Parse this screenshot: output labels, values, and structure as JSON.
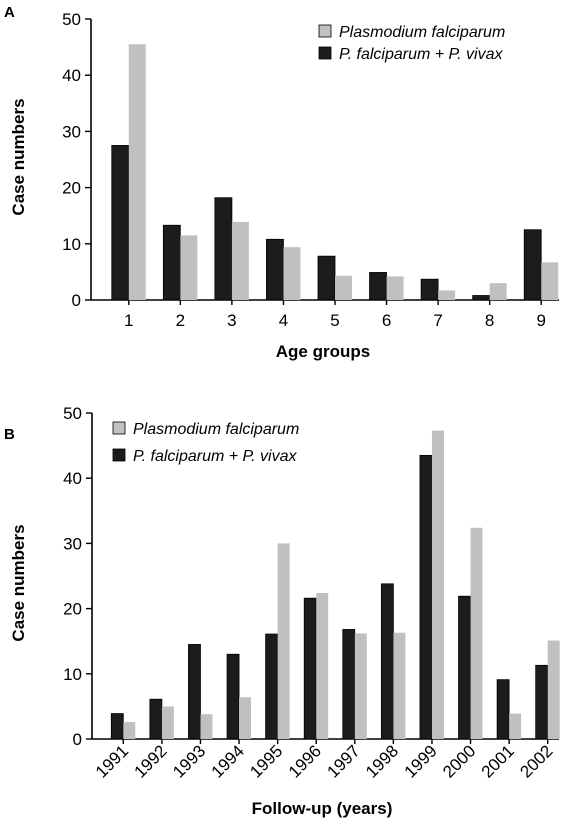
{
  "colors": {
    "falciparum": "#c0c0c0",
    "mixed": "#1c1c1c",
    "stroke": "#000000"
  },
  "chart_data": [
    {
      "panel": "A",
      "type": "bar",
      "xlabel": "Age groups",
      "ylabel": "Case numbers",
      "ylim": [
        0,
        50
      ],
      "yticks": [
        0,
        10,
        20,
        30,
        40,
        50
      ],
      "categories": [
        "1",
        "2",
        "3",
        "4",
        "5",
        "6",
        "7",
        "8",
        "9"
      ],
      "series": [
        {
          "key": "mixed",
          "name": "P. falciparum + P. vivax",
          "values": [
            27.5,
            13.3,
            18.2,
            10.8,
            7.8,
            4.9,
            3.7,
            0.8,
            12.5
          ]
        },
        {
          "key": "falciparum",
          "name": "Plasmodium falciparum",
          "values": [
            45.5,
            11.5,
            13.9,
            9.4,
            4.3,
            4.2,
            1.7,
            3.0,
            6.7
          ]
        }
      ],
      "legend": [
        {
          "key": "falciparum",
          "name": "Plasmodium falciparum"
        },
        {
          "key": "mixed",
          "name": "P. falciparum + P. vivax"
        }
      ],
      "legend_position": "top-right",
      "grid": false
    },
    {
      "panel": "B",
      "type": "bar",
      "xlabel": "Follow-up (years)",
      "ylabel": "Case numbers",
      "ylim": [
        0,
        50
      ],
      "yticks": [
        0,
        10,
        20,
        30,
        40,
        50
      ],
      "categories": [
        "1991",
        "1992",
        "1993",
        "1994",
        "1995",
        "1996",
        "1997",
        "1998",
        "1999",
        "2000",
        "2001",
        "2002"
      ],
      "series": [
        {
          "key": "mixed",
          "name": "P. falciparum + P. vivax",
          "values": [
            3.9,
            6.1,
            14.5,
            13.0,
            16.1,
            21.6,
            16.8,
            23.8,
            43.5,
            21.9,
            9.1,
            11.3
          ]
        },
        {
          "key": "falciparum",
          "name": "Plasmodium falciparum",
          "values": [
            2.6,
            5.0,
            3.8,
            6.4,
            30.0,
            22.4,
            16.2,
            16.3,
            47.3,
            32.4,
            3.9,
            15.1
          ]
        }
      ],
      "legend": [
        {
          "key": "falciparum",
          "name": "Plasmodium falciparum"
        },
        {
          "key": "mixed",
          "name": "P. falciparum + P. vivax"
        }
      ],
      "legend_position": "top-left",
      "grid": false
    }
  ]
}
